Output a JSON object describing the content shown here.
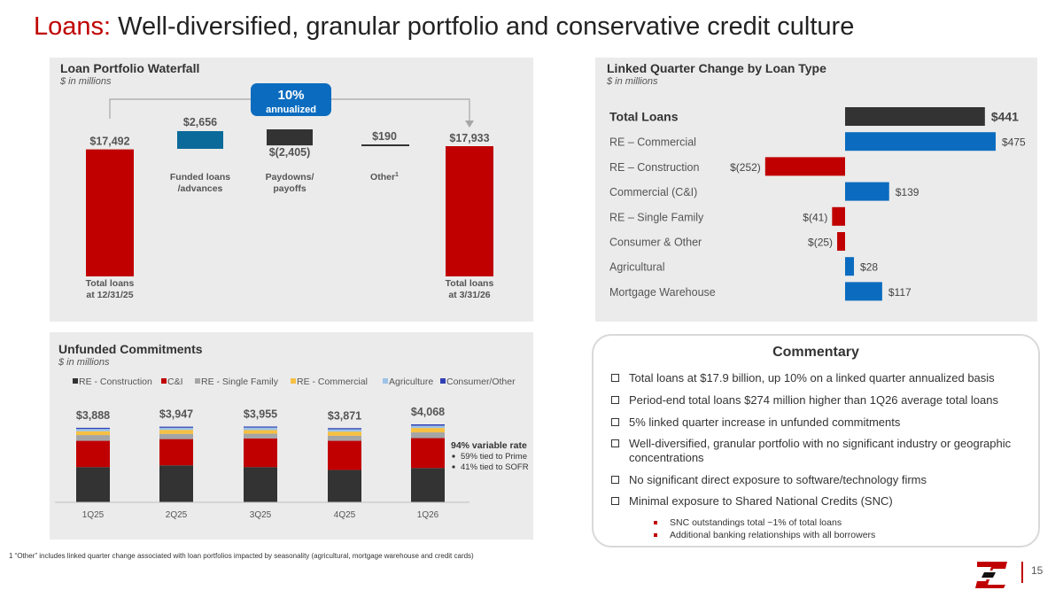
{
  "title": {
    "accent": "Loans:",
    "rest": " Well-diversified, granular portfolio and conservative credit culture"
  },
  "waterfall": {
    "title": "Loan Portfolio Waterfall",
    "subtitle": "$ in millions",
    "badge": {
      "value": "10%",
      "label": "annualized"
    },
    "chart_data": {
      "type": "bar",
      "subtype": "waterfall",
      "categories": [
        "Total loans at 12/31/25",
        "Funded loans /advances",
        "Paydowns/ payoffs",
        "Other",
        "Total loans at 3/31/26"
      ],
      "values": [
        17492,
        2656,
        -2405,
        190,
        17933
      ],
      "value_labels": [
        "$17,492",
        "$2,656",
        "$(2,405)",
        "$190",
        "$17,933"
      ],
      "steps": [
        {
          "label1": "Total loans",
          "label2": "at 12/31/25",
          "value": 17492,
          "display": "$17,492",
          "kind": "total",
          "color": "#c00000"
        },
        {
          "label1": "Funded loans",
          "label2": "/advances",
          "value": 2656,
          "display": "$2,656",
          "kind": "delta",
          "color": "#0b6a9a"
        },
        {
          "label1": "Paydowns/",
          "label2": "payoffs",
          "value": -2405,
          "display": "$(2,405)",
          "kind": "delta",
          "color": "#333333"
        },
        {
          "label1": "Other",
          "label2": "",
          "sup": "1",
          "value": 190,
          "display": "$190",
          "kind": "delta",
          "color": "#333333"
        },
        {
          "label1": "Total loans",
          "label2": "at 3/31/26",
          "value": 17933,
          "display": "$17,933",
          "kind": "total",
          "color": "#c00000"
        }
      ]
    }
  },
  "linked_quarter": {
    "title": "Linked Quarter Change by Loan Type",
    "subtitle": "$ in millions",
    "chart_data": {
      "type": "bar",
      "orientation": "horizontal",
      "categories": [
        "Total Loans",
        "RE – Commercial",
        "RE – Construction",
        "Commercial (C&I)",
        "RE – Single Family",
        "Consumer & Other",
        "Agricultural",
        "Mortgage Warehouse"
      ],
      "values": [
        441,
        475,
        -252,
        139,
        -41,
        -25,
        28,
        117
      ],
      "value_labels": [
        "$441",
        "$475",
        "$(252)",
        "$139",
        "$(41)",
        "$(25)",
        "$28",
        "$117"
      ],
      "colors": [
        "#333333",
        "#0b6cbf",
        "#c00000",
        "#0b6cbf",
        "#c00000",
        "#c00000",
        "#0b6cbf",
        "#0b6cbf"
      ]
    }
  },
  "unfunded": {
    "title": "Unfunded Commitments",
    "subtitle": "$ in millions",
    "variable_rate": {
      "title": "94% variable rate",
      "items": [
        "59% tied to Prime",
        "41% tied to SOFR"
      ]
    },
    "chart_data": {
      "type": "bar",
      "subtype": "stacked",
      "categories": [
        "1Q25",
        "2Q25",
        "3Q25",
        "4Q25",
        "1Q26"
      ],
      "totals": [
        "$3,888",
        "$3,947",
        "$3,955",
        "$3,871",
        "$4,068"
      ],
      "series": [
        {
          "name": "RE - Construction",
          "color": "#333333",
          "values": [
            1840,
            1930,
            1840,
            1690,
            1790
          ]
        },
        {
          "name": "C&I",
          "color": "#c00000",
          "values": [
            1370,
            1370,
            1490,
            1520,
            1560
          ]
        },
        {
          "name": "RE - Single Family",
          "color": "#a5a5a5",
          "values": [
            300,
            270,
            250,
            260,
            300
          ]
        },
        {
          "name": "RE - Commercial",
          "color": "#f5c043",
          "values": [
            200,
            210,
            190,
            220,
            230
          ]
        },
        {
          "name": "Agriculture",
          "color": "#9dc3e6",
          "values": [
            120,
            110,
            130,
            120,
            120
          ]
        },
        {
          "name": "Consumer/Other",
          "color": "#2f3fb3",
          "values": [
            58,
            57,
            55,
            61,
            68
          ]
        }
      ]
    }
  },
  "commentary": {
    "title": "Commentary",
    "items": [
      "Total loans at $17.9 billion, up 10% on a linked quarter annualized basis",
      "Period-end total loans $274 million higher than 1Q26 average total loans",
      "5% linked quarter increase in unfunded commitments",
      "Well-diversified, granular portfolio with no significant industry or geographic concentrations",
      "No significant direct exposure to software/technology firms",
      "Minimal exposure to Shared National Credits (SNC)"
    ],
    "subitems": [
      "SNC outstandings total ~1% of total loans",
      "Additional banking relationships with all borrowers"
    ]
  },
  "footnote": "1   “Other” includes linked quarter change associated with loan portfolios impacted by seasonality (agricultural, mortgage warehouse and credit cards)",
  "page_number": "15",
  "logo_icon": "zions-logo-icon"
}
